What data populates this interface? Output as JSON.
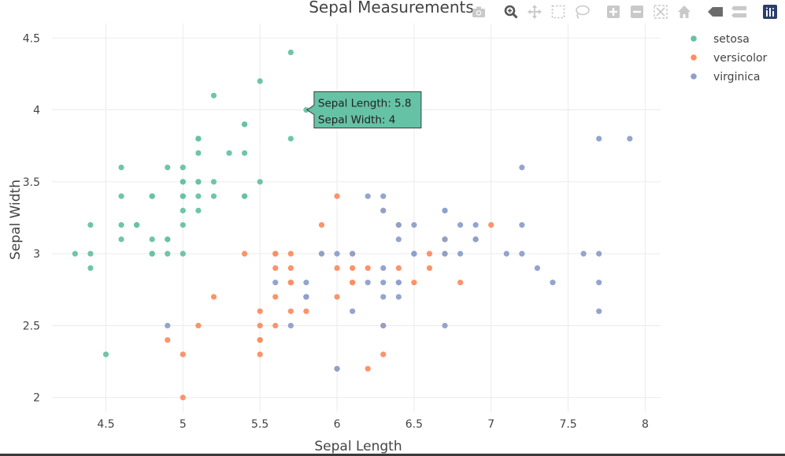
{
  "modebar": {
    "icons": [
      "camera-icon",
      "zoom-icon",
      "pan-icon",
      "box-select-icon",
      "lasso-select-icon",
      "zoom-in-icon",
      "zoom-out-icon",
      "autoscale-icon",
      "reset-axes-icon",
      "hover-closest-icon",
      "hover-compare-icon",
      "plotly-logo-icon"
    ]
  },
  "tooltip": {
    "line1": "Sepal Length: 5.8",
    "line2": "Sepal Width: 4",
    "x": 5.8,
    "y": 4,
    "series": "setosa"
  },
  "chart_data": {
    "type": "scatter",
    "title": "Sepal Measurements",
    "xlabel": "Sepal Length",
    "ylabel": "Sepal Width",
    "xlim": [
      4.15,
      8.1
    ],
    "ylim": [
      1.9,
      4.6
    ],
    "xticks": [
      "4.5",
      "5",
      "5.5",
      "6",
      "6.5",
      "7",
      "7.5",
      "8"
    ],
    "xtick_values": [
      4.5,
      5,
      5.5,
      6,
      6.5,
      7,
      7.5,
      8
    ],
    "yticks": [
      "2",
      "2.5",
      "3",
      "3.5",
      "4",
      "4.5"
    ],
    "ytick_values": [
      2,
      2.5,
      3,
      3.5,
      4,
      4.5
    ],
    "grid": true,
    "legend_position": "top-right",
    "series": [
      {
        "name": "setosa",
        "color": "#66c2a5",
        "x": [
          5.1,
          4.9,
          4.7,
          4.6,
          5.0,
          5.4,
          4.6,
          5.0,
          4.4,
          4.9,
          5.4,
          4.8,
          4.8,
          4.3,
          5.8,
          5.7,
          5.4,
          5.1,
          5.7,
          5.1,
          5.4,
          5.1,
          4.6,
          5.1,
          4.8,
          5.0,
          5.0,
          5.2,
          5.2,
          4.7,
          4.8,
          5.4,
          5.2,
          5.5,
          4.9,
          5.0,
          5.5,
          4.9,
          4.4,
          5.1,
          5.0,
          4.5,
          4.4,
          5.0,
          5.1,
          4.8,
          5.1,
          4.6,
          5.3,
          5.0
        ],
        "y": [
          3.5,
          3.0,
          3.2,
          3.1,
          3.6,
          3.9,
          3.4,
          3.4,
          2.9,
          3.1,
          3.7,
          3.4,
          3.0,
          3.0,
          4.0,
          4.4,
          3.9,
          3.5,
          3.8,
          3.8,
          3.4,
          3.7,
          3.6,
          3.3,
          3.4,
          3.0,
          3.4,
          3.5,
          3.4,
          3.2,
          3.1,
          3.4,
          4.1,
          4.2,
          3.1,
          3.2,
          3.5,
          3.6,
          3.0,
          3.4,
          3.5,
          2.3,
          3.2,
          3.5,
          3.8,
          3.0,
          3.8,
          3.2,
          3.7,
          3.3
        ]
      },
      {
        "name": "versicolor",
        "color": "#fc8d62",
        "x": [
          7.0,
          6.4,
          6.9,
          5.5,
          6.5,
          5.7,
          6.3,
          4.9,
          6.6,
          5.2,
          5.0,
          5.9,
          6.0,
          6.1,
          5.6,
          6.7,
          5.6,
          5.8,
          6.2,
          5.6,
          5.9,
          6.1,
          6.3,
          6.1,
          6.4,
          6.6,
          6.8,
          6.7,
          6.0,
          5.7,
          5.5,
          5.5,
          5.8,
          6.0,
          5.4,
          6.0,
          6.7,
          6.3,
          5.6,
          5.5,
          5.5,
          6.1,
          5.8,
          5.0,
          5.6,
          5.7,
          5.7,
          6.2,
          5.1,
          5.7
        ],
        "y": [
          3.2,
          3.2,
          3.1,
          2.3,
          2.8,
          2.8,
          3.3,
          2.4,
          2.9,
          2.7,
          2.0,
          3.0,
          2.2,
          2.9,
          2.9,
          3.1,
          3.0,
          2.7,
          2.2,
          2.5,
          3.2,
          2.8,
          2.5,
          2.8,
          2.9,
          3.0,
          2.8,
          3.0,
          2.9,
          2.6,
          2.4,
          2.4,
          2.7,
          2.7,
          3.0,
          3.4,
          3.1,
          2.3,
          3.0,
          2.5,
          2.6,
          3.0,
          2.6,
          2.3,
          2.7,
          3.0,
          2.9,
          2.9,
          2.5,
          2.8
        ]
      },
      {
        "name": "virginica",
        "color": "#8da0cb",
        "x": [
          6.3,
          5.8,
          7.1,
          6.3,
          6.5,
          7.6,
          4.9,
          7.3,
          6.7,
          7.2,
          6.5,
          6.4,
          6.8,
          5.7,
          5.8,
          6.4,
          6.5,
          7.7,
          7.7,
          6.0,
          6.9,
          5.6,
          7.7,
          6.3,
          6.7,
          7.2,
          6.2,
          6.1,
          6.4,
          7.2,
          7.4,
          7.9,
          6.4,
          6.3,
          6.1,
          7.7,
          6.3,
          6.4,
          6.0,
          6.9,
          6.7,
          6.9,
          5.8,
          6.8,
          6.7,
          6.7,
          6.3,
          6.5,
          6.2,
          5.9
        ],
        "y": [
          3.3,
          2.7,
          3.0,
          2.9,
          3.0,
          3.0,
          2.5,
          2.9,
          2.5,
          3.6,
          3.2,
          2.7,
          3.0,
          2.5,
          2.8,
          3.2,
          3.0,
          3.8,
          2.6,
          2.2,
          3.2,
          2.8,
          2.8,
          2.7,
          3.3,
          3.2,
          2.8,
          3.0,
          2.8,
          3.0,
          2.8,
          3.8,
          2.8,
          2.8,
          2.6,
          3.0,
          3.4,
          3.1,
          3.0,
          3.1,
          3.1,
          3.1,
          2.7,
          3.2,
          3.3,
          3.0,
          2.5,
          3.0,
          3.4,
          3.0
        ]
      }
    ]
  }
}
